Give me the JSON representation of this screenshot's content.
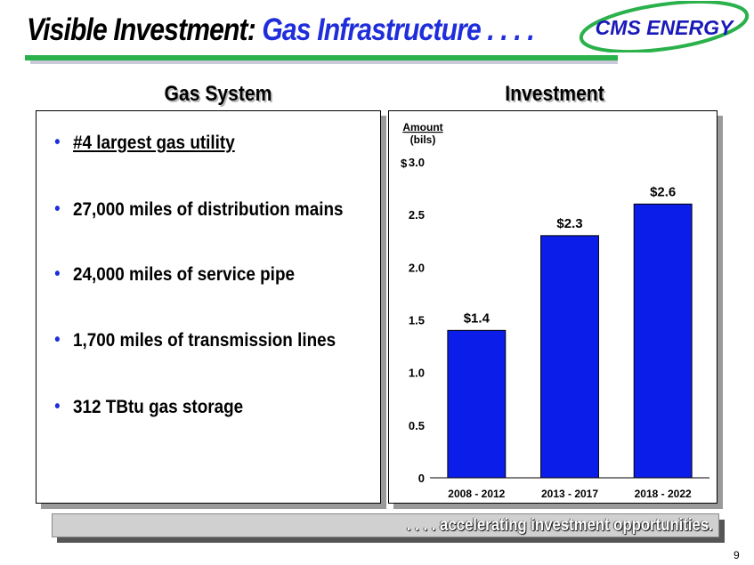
{
  "header": {
    "title_part1": "Visible Investment:",
    "title_part2": " Gas Infrastructure . . . .",
    "logo_text": "CMS ENERGY"
  },
  "left_panel": {
    "heading": "Gas System",
    "bullets": [
      "#4 largest gas utility",
      "27,000 miles of distribution mains",
      "24,000 miles of service pipe",
      "1,700 miles of transmission lines",
      "312 TBtu gas storage"
    ]
  },
  "right_panel": {
    "heading": "Investment"
  },
  "chart_data": {
    "type": "bar",
    "title": "",
    "ylabel_line1": "Amount",
    "ylabel_line2": "(bils)",
    "currency_symbol": "$",
    "categories": [
      "2008 - 2012",
      "2013 - 2017",
      "2018 - 2022"
    ],
    "values": [
      1.4,
      2.3,
      2.6
    ],
    "data_labels": [
      "$1.4",
      "$2.3",
      "$2.6"
    ],
    "ylim": [
      0,
      3.0
    ],
    "yticks": [
      0,
      0.5,
      1.0,
      1.5,
      2.0,
      2.5,
      3.0
    ],
    "ytick_labels": [
      "0",
      "0.5",
      "1.0",
      "1.5",
      "2.0",
      "2.5",
      "3.0"
    ],
    "grid": false,
    "legend": "none",
    "bar_color": "#0b1de8"
  },
  "footer": {
    "banner_text": ". . . . accelerating investment opportunities.",
    "page_number": "9"
  },
  "colors": {
    "accent_blue": "#1f2edb",
    "accent_green": "#2bb14b",
    "logo_blue": "#1a1ab8"
  }
}
